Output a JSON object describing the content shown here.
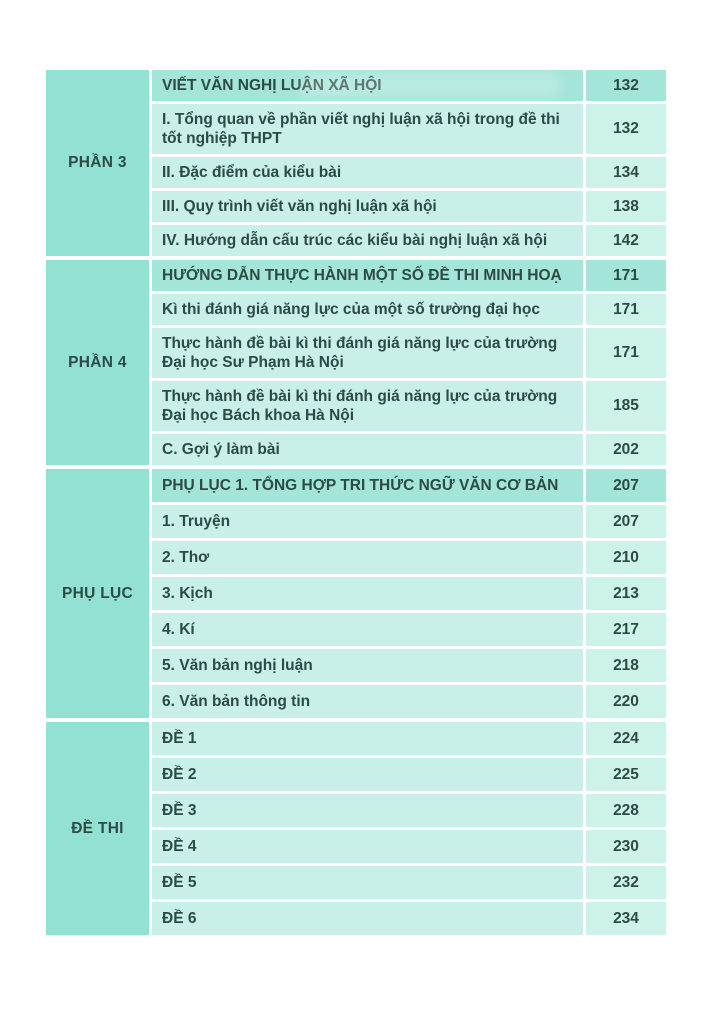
{
  "document": {
    "kind": "book-table-of-contents-scan",
    "language": "vi"
  },
  "colors": {
    "page_background": "#ffffff",
    "header_row_bg": "#a3e5d8",
    "content_row_bg": "#c8f0e8",
    "page_number_col_bg": "#cdf2ea",
    "left_label_col_bg": "#93e1d3",
    "text": "#2d4b45"
  },
  "toc": {
    "sections": [
      {
        "label": "PHẦN 3",
        "rows": [
          {
            "text": "VIẾT VĂN NGHỊ LUẬN XÃ HỘI",
            "page": "132",
            "header": true
          },
          {
            "text": "I. Tổng quan về phần viết nghị luận xã hội trong đề thi tốt nghiệp THPT",
            "page": "132",
            "header": false
          },
          {
            "text": "II. Đặc điểm của kiểu bài",
            "page": "134",
            "header": false
          },
          {
            "text": "III. Quy trình viết văn nghị luận xã hội",
            "page": "138",
            "header": false
          },
          {
            "text": "IV. Hướng dẫn cấu trúc các kiểu bài nghị luận xã hội",
            "page": "142",
            "header": false
          }
        ]
      },
      {
        "label": "PHẦN 4",
        "rows": [
          {
            "text": "HƯỚNG DẪN THỰC HÀNH MỘT SỐ ĐỀ THI MINH HOẠ",
            "page": "171",
            "header": true
          },
          {
            "text": "Kì thi đánh giá năng lực của một số trường đại học",
            "page": "171",
            "header": false
          },
          {
            "text": "Thực hành đề bài kì thi đánh giá năng lực của trường Đại học Sư Phạm Hà Nội",
            "page": "171",
            "header": false
          },
          {
            "text": "Thực hành đề bài kì thi đánh giá năng lực của trường Đại học Bách khoa Hà Nội",
            "page": "185",
            "header": false
          },
          {
            "text": "C. Gợi ý làm bài",
            "page": "202",
            "header": false
          }
        ]
      },
      {
        "label": "PHỤ LỤC",
        "rows": [
          {
            "text": "PHỤ LỤC 1. TỔNG HỢP TRI THỨC NGỮ VĂN CƠ BẢN",
            "page": "207",
            "header": true
          },
          {
            "text": "1. Truyện",
            "page": "207",
            "header": false
          },
          {
            "text": "2. Thơ",
            "page": "210",
            "header": false
          },
          {
            "text": "3. Kịch",
            "page": "213",
            "header": false
          },
          {
            "text": "4. Kí",
            "page": "217",
            "header": false
          },
          {
            "text": "5. Văn bản nghị luận",
            "page": "218",
            "header": false
          },
          {
            "text": "6. Văn bản thông tin",
            "page": "220",
            "header": false
          }
        ]
      },
      {
        "label": "ĐỀ THI",
        "rows": [
          {
            "text": "ĐỀ 1",
            "page": "224",
            "header": false
          },
          {
            "text": "ĐỀ 2",
            "page": "225",
            "header": false
          },
          {
            "text": "ĐỀ 3",
            "page": "228",
            "header": false
          },
          {
            "text": "ĐỀ 4",
            "page": "230",
            "header": false
          },
          {
            "text": "ĐỀ 5",
            "page": "232",
            "header": false
          },
          {
            "text": "ĐỀ 6",
            "page": "234",
            "header": false
          }
        ]
      }
    ]
  }
}
